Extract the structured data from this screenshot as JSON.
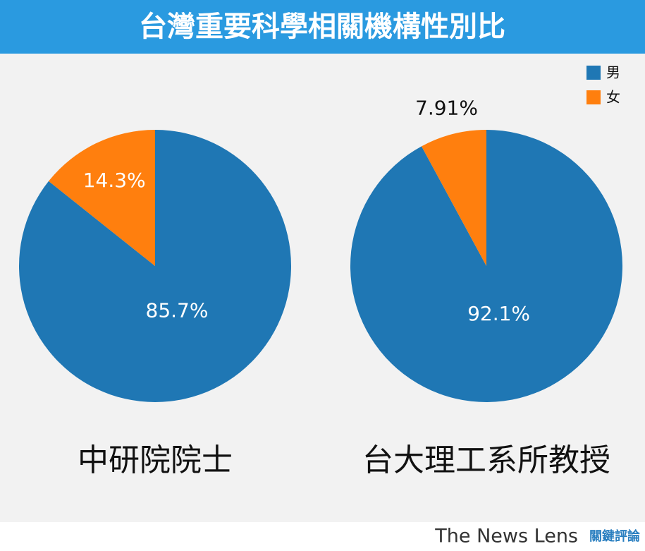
{
  "title": "台灣重要科學相關機構性別比",
  "footer": {
    "brand": "The News Lens",
    "brand_zh": "關鍵評論"
  },
  "chart_data": [
    {
      "type": "pie",
      "label": "中研院院士",
      "categories": [
        "男",
        "女"
      ],
      "values": [
        85.7,
        14.3
      ],
      "value_labels": [
        "85.7%",
        "14.3%"
      ],
      "colors": [
        "#1f77b4",
        "#ff7f0e"
      ]
    },
    {
      "type": "pie",
      "label": "台大理工系所教授",
      "categories": [
        "男",
        "女"
      ],
      "values": [
        92.1,
        7.91
      ],
      "value_labels": [
        "92.1%",
        "7.91%"
      ],
      "colors": [
        "#1f77b4",
        "#ff7f0e"
      ]
    }
  ]
}
